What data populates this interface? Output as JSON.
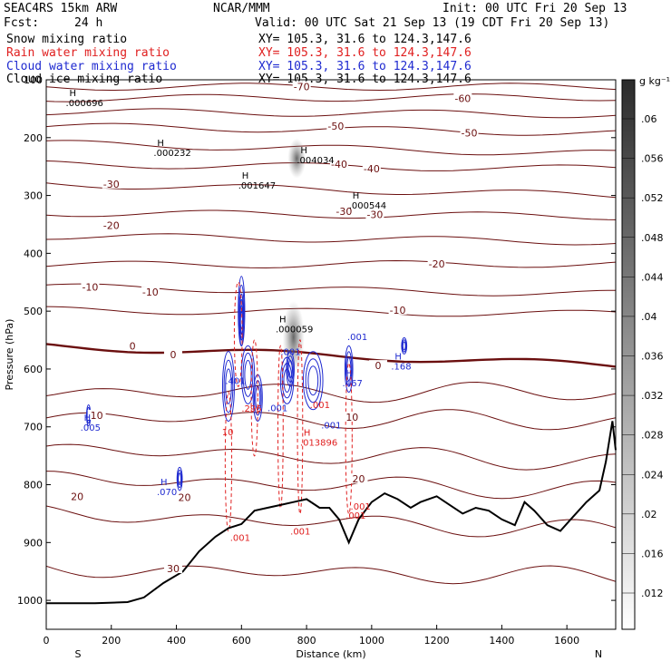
{
  "header": {
    "model": "SEAC4RS 15km ARW",
    "org": "NCAR/MMM",
    "init": "Init: 00 UTC Fri 20 Sep 13",
    "fcst_label": "Fcst:",
    "fcst_value": "24 h",
    "valid": "Valid: 00 UTC Sat 21 Sep 13 (19 CDT Fri 20 Sep 13)"
  },
  "legend": [
    {
      "name": "Snow mixing ratio",
      "xy": "XY= 105.3, 31.6 to 124.3,147.6",
      "color": "#000000"
    },
    {
      "name": "Rain water mixing ratio",
      "xy": "XY= 105.3, 31.6 to 124.3,147.6",
      "color": "#e02020"
    },
    {
      "name": "Cloud water mixing ratio",
      "xy": "XY= 105.3, 31.6 to 124.3,147.6",
      "color": "#1f2ad0"
    },
    {
      "name": "Cloud ice mixing ratio",
      "xy": "XY= 105.3, 31.6 to 124.3,147.6",
      "color": "#000000"
    }
  ],
  "colorbar": {
    "unit": "g kg⁻¹",
    "ticks": [
      ".06",
      ".056",
      ".052",
      ".048",
      ".044",
      ".04",
      ".036",
      ".032",
      ".028",
      ".024",
      ".02",
      ".016",
      ".012"
    ]
  },
  "chart_data": {
    "type": "cross-section",
    "xlabel": "Distance (km)",
    "ylabel": "Pressure (hPa)",
    "xlim": [
      0,
      1750
    ],
    "ylim": [
      1050,
      100
    ],
    "x_ticks": [
      0,
      200,
      400,
      600,
      800,
      1000,
      1200,
      1400,
      1600
    ],
    "y_ticks": [
      100,
      200,
      300,
      400,
      500,
      600,
      700,
      800,
      900,
      1000
    ],
    "x_end_labels": {
      "left": "S",
      "right": "N"
    },
    "temperature_contours": [
      {
        "label": "-70",
        "x": 785,
        "p": 112
      },
      {
        "label": "-60",
        "x": 1280,
        "p": 132
      },
      {
        "label": "-50",
        "x": 890,
        "p": 180
      },
      {
        "label": "-50",
        "x": 1300,
        "p": 192
      },
      {
        "label": "-40",
        "x": 900,
        "p": 246
      },
      {
        "label": "-40",
        "x": 1000,
        "p": 254
      },
      {
        "label": "-30",
        "x": 200,
        "p": 280
      },
      {
        "label": "-30",
        "x": 915,
        "p": 327
      },
      {
        "label": "-30",
        "x": 1010,
        "p": 333
      },
      {
        "label": "-20",
        "x": 200,
        "p": 352
      },
      {
        "label": "-20",
        "x": 1200,
        "p": 418
      },
      {
        "label": "-10",
        "x": 135,
        "p": 458
      },
      {
        "label": "-10",
        "x": 320,
        "p": 467
      },
      {
        "label": "-10",
        "x": 1080,
        "p": 498
      },
      {
        "label": "0",
        "x": 265,
        "p": 560
      },
      {
        "label": "0",
        "x": 390,
        "p": 575
      },
      {
        "label": "0",
        "x": 1020,
        "p": 594
      },
      {
        "label": "10",
        "x": 155,
        "p": 680
      },
      {
        "label": "10",
        "x": 940,
        "p": 683
      },
      {
        "label": "20",
        "x": 95,
        "p": 820
      },
      {
        "label": "20",
        "x": 425,
        "p": 822
      },
      {
        "label": "20",
        "x": 960,
        "p": 790
      },
      {
        "label": "30",
        "x": 390,
        "p": 945
      }
    ],
    "extrema_labels": [
      {
        "marker": "H",
        "value": ".000696",
        "x": 60,
        "p": 138,
        "series": "Snow mixing ratio"
      },
      {
        "marker": "H",
        "value": ".000232",
        "x": 330,
        "p": 224,
        "series": "Snow mixing ratio"
      },
      {
        "marker": "H",
        "value": ".004034",
        "x": 770,
        "p": 236,
        "series": "Cloud ice mixing ratio"
      },
      {
        "marker": "H",
        "value": ".001647",
        "x": 590,
        "p": 280,
        "series": "Snow mixing ratio"
      },
      {
        "marker": "H",
        "value": ".000544",
        "x": 930,
        "p": 315,
        "series": "Snow mixing ratio"
      },
      {
        "marker": "H",
        "value": ".000059",
        "x": 705,
        "p": 529,
        "series": "Snow mixing ratio"
      },
      {
        "marker": "",
        "value": ".001",
        "x": 925,
        "p": 542,
        "series": "Cloud water mixing ratio"
      },
      {
        "marker": "",
        "value": ".001",
        "x": 720,
        "p": 568,
        "series": "Cloud water mixing ratio"
      },
      {
        "marker": "H",
        "value": ".168",
        "x": 1060,
        "p": 593,
        "series": "Cloud water mixing ratio"
      },
      {
        "marker": "",
        "value": ".401",
        "x": 550,
        "p": 618,
        "series": "Cloud water mixing ratio"
      },
      {
        "marker": "H",
        "value": ".467",
        "x": 910,
        "p": 622,
        "series": "Cloud water mixing ratio"
      },
      {
        "marker": "",
        "value": ".001",
        "x": 680,
        "p": 665,
        "series": "Cloud water mixing ratio"
      },
      {
        "marker": "",
        "value": ".001",
        "x": 810,
        "p": 660,
        "series": "Rain water mixing ratio"
      },
      {
        "marker": "",
        "value": ".296",
        "x": 600,
        "p": 666,
        "series": "Rain water mixing ratio"
      },
      {
        "marker": "H",
        "value": ".005",
        "x": 105,
        "p": 699,
        "series": "Cloud water mixing ratio"
      },
      {
        "marker": "",
        "value": ".001",
        "x": 845,
        "p": 695,
        "series": "Cloud water mixing ratio"
      },
      {
        "marker": "H",
        "value": ".013896",
        "x": 780,
        "p": 725,
        "series": "Rain water mixing ratio"
      },
      {
        "marker": "",
        "value": "10",
        "x": 540,
        "p": 707,
        "series": "Rain water mixing ratio"
      },
      {
        "marker": "H",
        "value": ".070",
        "x": 340,
        "p": 810,
        "series": "Cloud water mixing ratio"
      },
      {
        "marker": "",
        "value": ".001",
        "x": 565,
        "p": 889,
        "series": "Rain water mixing ratio"
      },
      {
        "marker": "",
        "value": ".001",
        "x": 750,
        "p": 878,
        "series": "Rain water mixing ratio"
      },
      {
        "marker": "",
        "value": ".001",
        "x": 920,
        "p": 851,
        "series": "Rain water mixing ratio"
      },
      {
        "marker": "",
        "value": ".001",
        "x": 935,
        "p": 835,
        "series": "Rain water mixing ratio"
      }
    ],
    "terrain": [
      [
        0,
        1005
      ],
      [
        150,
        1005
      ],
      [
        250,
        1003
      ],
      [
        300,
        995
      ],
      [
        360,
        970
      ],
      [
        420,
        950
      ],
      [
        470,
        915
      ],
      [
        520,
        890
      ],
      [
        560,
        875
      ],
      [
        600,
        868
      ],
      [
        640,
        845
      ],
      [
        680,
        840
      ],
      [
        720,
        835
      ],
      [
        760,
        830
      ],
      [
        800,
        825
      ],
      [
        840,
        840
      ],
      [
        870,
        840
      ],
      [
        900,
        860
      ],
      [
        930,
        900
      ],
      [
        960,
        860
      ],
      [
        1000,
        830
      ],
      [
        1040,
        815
      ],
      [
        1080,
        825
      ],
      [
        1120,
        840
      ],
      [
        1150,
        830
      ],
      [
        1200,
        820
      ],
      [
        1240,
        835
      ],
      [
        1280,
        850
      ],
      [
        1320,
        840
      ],
      [
        1360,
        845
      ],
      [
        1400,
        860
      ],
      [
        1440,
        870
      ],
      [
        1470,
        830
      ],
      [
        1500,
        845
      ],
      [
        1540,
        870
      ],
      [
        1580,
        880
      ],
      [
        1620,
        855
      ],
      [
        1660,
        830
      ],
      [
        1700,
        810
      ],
      [
        1720,
        760
      ],
      [
        1740,
        690
      ],
      [
        1750,
        740
      ]
    ]
  }
}
